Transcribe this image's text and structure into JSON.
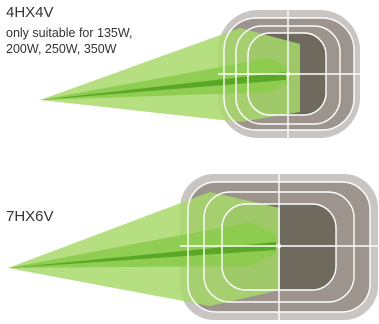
{
  "colors": {
    "outer_frame": "#c8c5c2",
    "mid_square": "#9c948d",
    "inner_square": "#6e6a5d",
    "beam_light": "#a8d96b",
    "beam_mid": "#8ccc4e",
    "beam_core": "#5aa825",
    "grid_line": "#ffffff",
    "text": "#333333"
  },
  "variants": [
    {
      "model": "4HX4V",
      "note_lines": [
        "only suitable for 135W,",
        "200W, 250W, 350W"
      ]
    },
    {
      "model": "7HX6V",
      "note_lines": []
    }
  ]
}
